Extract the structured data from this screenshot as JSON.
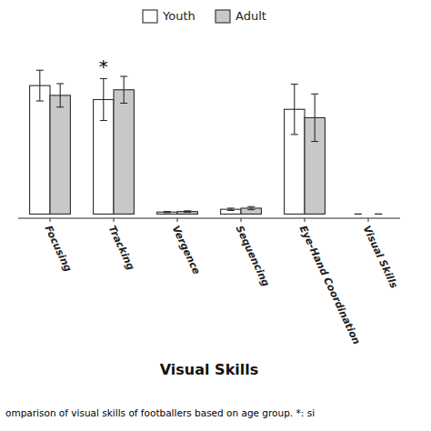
{
  "chart_data": {
    "type": "bar",
    "xlabel": "Visual Skills",
    "caption": "omparison of visual skills of footballers based on age group. *: si",
    "categories": [
      "Focusing",
      "Tracking",
      "Vergence",
      "Sequencing",
      "Eye-Hand Coordination",
      "Visual Skills"
    ],
    "series": [
      {
        "name": "Youth",
        "color": "#ffffff",
        "values": [
          4.6,
          4.1,
          0.07,
          0.17,
          3.75,
          0.0
        ],
        "errors": [
          0.55,
          0.75,
          0.02,
          0.04,
          0.9,
          0.0
        ]
      },
      {
        "name": "Adult",
        "color": "#c8c8c8",
        "values": [
          4.25,
          4.45,
          0.09,
          0.21,
          3.45,
          0.0
        ],
        "errors": [
          0.42,
          0.48,
          0.025,
          0.055,
          0.85,
          0.0
        ]
      }
    ],
    "annotations": [
      {
        "text": "*",
        "category": "Tracking",
        "series": "Youth"
      }
    ],
    "ylim": [
      -0.15,
      6.2
    ],
    "tick_labels": "x",
    "legend": "top"
  }
}
